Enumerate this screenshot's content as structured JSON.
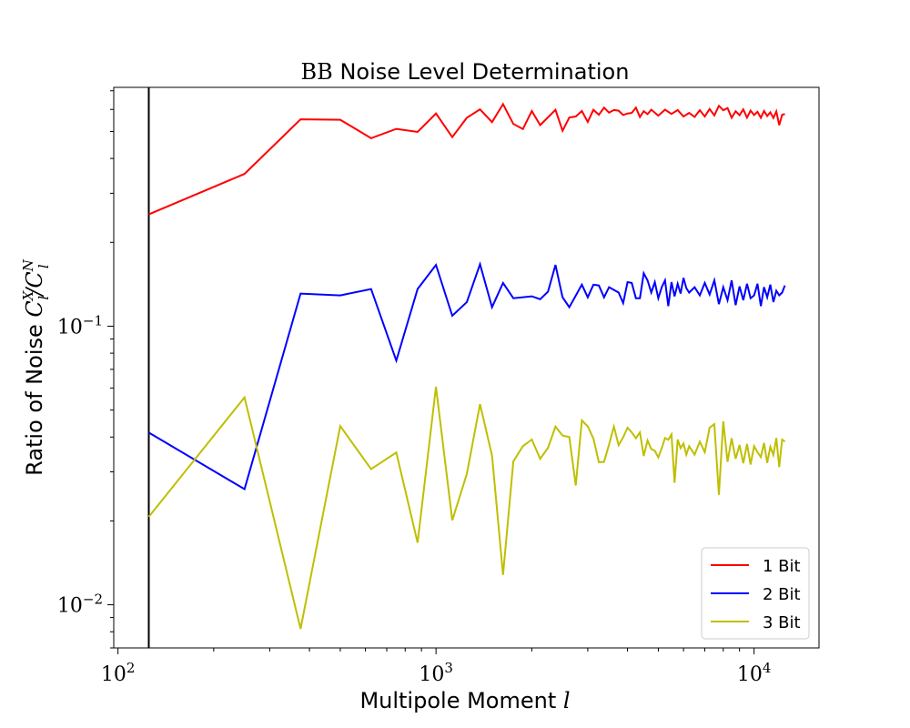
{
  "chart_data": {
    "type": "line",
    "title_prefix": "BB",
    "title_rest": " Noise Level Determination",
    "xlabel_text": "Multipole Moment ",
    "xlabel_var": "l",
    "ylabel_text": "Ratio of Noise ",
    "ylabel_math": "C",
    "ylabel_sup1": "X",
    "ylabel_sub1": "l",
    "ylabel_slash": "/C",
    "ylabel_sup2": "N",
    "ylabel_sub2": "l",
    "x_scale": "log",
    "y_scale": "log",
    "xlim": [
      97,
      16000
    ],
    "ylim": [
      0.007,
      0.72
    ],
    "x_ticks": [
      {
        "value": 100,
        "base": "10",
        "exp": "2"
      },
      {
        "value": 1000,
        "base": "10",
        "exp": "3"
      },
      {
        "value": 10000,
        "base": "10",
        "exp": "4"
      }
    ],
    "y_ticks": [
      {
        "value": 0.01,
        "base": "10",
        "exp": "−2"
      },
      {
        "value": 0.1,
        "base": "10",
        "exp": "−1"
      }
    ],
    "vline_x": 125,
    "grid": false,
    "legend_position": "lower-right",
    "series": [
      {
        "name": "1 Bit",
        "color": "#ff0000",
        "points": [
          [
            125,
            0.252
          ],
          [
            250,
            0.352
          ],
          [
            375,
            0.553
          ],
          [
            500,
            0.551
          ],
          [
            625,
            0.473
          ],
          [
            750,
            0.511
          ],
          [
            875,
            0.498
          ],
          [
            1000,
            0.58
          ],
          [
            1125,
            0.477
          ],
          [
            1250,
            0.56
          ],
          [
            1375,
            0.6
          ],
          [
            1500,
            0.54
          ],
          [
            1625,
            0.627
          ],
          [
            1750,
            0.532
          ],
          [
            1875,
            0.51
          ],
          [
            2000,
            0.592
          ],
          [
            2125,
            0.527
          ],
          [
            2375,
            0.598
          ],
          [
            2500,
            0.503
          ],
          [
            2625,
            0.561
          ],
          [
            2750,
            0.566
          ],
          [
            2875,
            0.592
          ],
          [
            3000,
            0.541
          ],
          [
            3125,
            0.598
          ],
          [
            3250,
            0.574
          ],
          [
            3375,
            0.609
          ],
          [
            3500,
            0.584
          ],
          [
            3625,
            0.597
          ],
          [
            3750,
            0.594
          ],
          [
            3875,
            0.573
          ],
          [
            4000,
            0.58
          ],
          [
            4125,
            0.583
          ],
          [
            4250,
            0.609
          ],
          [
            4375,
            0.564
          ],
          [
            4500,
            0.591
          ],
          [
            4625,
            0.577
          ],
          [
            4750,
            0.599
          ],
          [
            5000,
            0.57
          ],
          [
            5250,
            0.599
          ],
          [
            5500,
            0.578
          ],
          [
            5750,
            0.597
          ],
          [
            6000,
            0.566
          ],
          [
            6250,
            0.583
          ],
          [
            6500,
            0.564
          ],
          [
            6750,
            0.596
          ],
          [
            7000,
            0.566
          ],
          [
            7250,
            0.602
          ],
          [
            7500,
            0.571
          ],
          [
            7750,
            0.618
          ],
          [
            8000,
            0.596
          ],
          [
            8250,
            0.607
          ],
          [
            8500,
            0.56
          ],
          [
            8750,
            0.591
          ],
          [
            9000,
            0.572
          ],
          [
            9250,
            0.6
          ],
          [
            9500,
            0.561
          ],
          [
            9750,
            0.594
          ],
          [
            10000,
            0.573
          ],
          [
            10250,
            0.588
          ],
          [
            10500,
            0.56
          ],
          [
            10750,
            0.592
          ],
          [
            11000,
            0.568
          ],
          [
            11250,
            0.586
          ],
          [
            11500,
            0.559
          ],
          [
            11750,
            0.59
          ],
          [
            12000,
            0.527
          ],
          [
            12250,
            0.574
          ],
          [
            12500,
            0.577
          ]
        ]
      },
      {
        "name": "2 Bit",
        "color": "#0000ff",
        "points": [
          [
            125,
            0.0415
          ],
          [
            250,
            0.026
          ],
          [
            375,
            0.131
          ],
          [
            500,
            0.129
          ],
          [
            625,
            0.136
          ],
          [
            750,
            0.0752
          ],
          [
            875,
            0.136
          ],
          [
            1000,
            0.166
          ],
          [
            1125,
            0.109
          ],
          [
            1250,
            0.122
          ],
          [
            1375,
            0.167
          ],
          [
            1500,
            0.117
          ],
          [
            1625,
            0.143
          ],
          [
            1750,
            0.126
          ],
          [
            2000,
            0.128
          ],
          [
            2125,
            0.125
          ],
          [
            2250,
            0.133
          ],
          [
            2375,
            0.166
          ],
          [
            2500,
            0.127
          ],
          [
            2625,
            0.117
          ],
          [
            2875,
            0.141
          ],
          [
            3000,
            0.127
          ],
          [
            3125,
            0.141
          ],
          [
            3250,
            0.14
          ],
          [
            3375,
            0.127
          ],
          [
            3500,
            0.138
          ],
          [
            3750,
            0.132
          ],
          [
            3875,
            0.121
          ],
          [
            4000,
            0.144
          ],
          [
            4125,
            0.143
          ],
          [
            4250,
            0.126
          ],
          [
            4375,
            0.126
          ],
          [
            4500,
            0.155
          ],
          [
            4625,
            0.146
          ],
          [
            4750,
            0.132
          ],
          [
            4875,
            0.144
          ],
          [
            5000,
            0.126
          ],
          [
            5125,
            0.138
          ],
          [
            5250,
            0.146
          ],
          [
            5375,
            0.118
          ],
          [
            5500,
            0.144
          ],
          [
            5625,
            0.128
          ],
          [
            5750,
            0.142
          ],
          [
            5875,
            0.131
          ],
          [
            6000,
            0.149
          ],
          [
            6125,
            0.137
          ],
          [
            6250,
            0.132
          ],
          [
            6500,
            0.138
          ],
          [
            6750,
            0.129
          ],
          [
            7000,
            0.143
          ],
          [
            7250,
            0.13
          ],
          [
            7500,
            0.146
          ],
          [
            7750,
            0.12
          ],
          [
            8000,
            0.138
          ],
          [
            8250,
            0.124
          ],
          [
            8500,
            0.146
          ],
          [
            8750,
            0.119
          ],
          [
            9000,
            0.139
          ],
          [
            9250,
            0.124
          ],
          [
            9500,
            0.142
          ],
          [
            9750,
            0.126
          ],
          [
            10000,
            0.129
          ],
          [
            10250,
            0.142
          ],
          [
            10500,
            0.118
          ],
          [
            10750,
            0.138
          ],
          [
            11000,
            0.127
          ],
          [
            11250,
            0.141
          ],
          [
            11500,
            0.122
          ],
          [
            11750,
            0.134
          ],
          [
            12000,
            0.129
          ],
          [
            12250,
            0.132
          ],
          [
            12500,
            0.14
          ]
        ]
      },
      {
        "name": "3 Bit",
        "color": "#bfbf00",
        "points": [
          [
            125,
            0.0207
          ],
          [
            250,
            0.0555
          ],
          [
            375,
            0.0082
          ],
          [
            500,
            0.0438
          ],
          [
            625,
            0.0307
          ],
          [
            750,
            0.0352
          ],
          [
            875,
            0.0167
          ],
          [
            1000,
            0.0606
          ],
          [
            1125,
            0.0201
          ],
          [
            1250,
            0.0295
          ],
          [
            1375,
            0.0525
          ],
          [
            1500,
            0.0343
          ],
          [
            1625,
            0.0128
          ],
          [
            1750,
            0.0327
          ],
          [
            1875,
            0.0371
          ],
          [
            2000,
            0.0392
          ],
          [
            2125,
            0.0334
          ],
          [
            2250,
            0.0366
          ],
          [
            2375,
            0.0436
          ],
          [
            2500,
            0.0405
          ],
          [
            2625,
            0.04
          ],
          [
            2750,
            0.0268
          ],
          [
            2875,
            0.0459
          ],
          [
            3000,
            0.0437
          ],
          [
            3125,
            0.0395
          ],
          [
            3250,
            0.0325
          ],
          [
            3375,
            0.0326
          ],
          [
            3500,
            0.0376
          ],
          [
            3625,
            0.0436
          ],
          [
            3750,
            0.0374
          ],
          [
            3875,
            0.0399
          ],
          [
            4000,
            0.0432
          ],
          [
            4125,
            0.0416
          ],
          [
            4250,
            0.0396
          ],
          [
            4375,
            0.0416
          ],
          [
            4500,
            0.0342
          ],
          [
            4625,
            0.0389
          ],
          [
            4750,
            0.0362
          ],
          [
            4875,
            0.0357
          ],
          [
            5000,
            0.0338
          ],
          [
            5125,
            0.0365
          ],
          [
            5250,
            0.0397
          ],
          [
            5375,
            0.0391
          ],
          [
            5500,
            0.0409
          ],
          [
            5625,
            0.0274
          ],
          [
            5750,
            0.0392
          ],
          [
            5875,
            0.0365
          ],
          [
            6000,
            0.0379
          ],
          [
            6125,
            0.0346
          ],
          [
            6250,
            0.0371
          ],
          [
            6500,
            0.0346
          ],
          [
            6750,
            0.0385
          ],
          [
            7000,
            0.0353
          ],
          [
            7250,
            0.0432
          ],
          [
            7500,
            0.0445
          ],
          [
            7750,
            0.0248
          ],
          [
            8000,
            0.0456
          ],
          [
            8250,
            0.0326
          ],
          [
            8500,
            0.0396
          ],
          [
            8750,
            0.0334
          ],
          [
            9000,
            0.0375
          ],
          [
            9250,
            0.0322
          ],
          [
            9500,
            0.0378
          ],
          [
            9750,
            0.0319
          ],
          [
            10000,
            0.0371
          ],
          [
            10250,
            0.0353
          ],
          [
            10500,
            0.0339
          ],
          [
            10750,
            0.0381
          ],
          [
            11000,
            0.0323
          ],
          [
            11250,
            0.0369
          ],
          [
            11500,
            0.0345
          ],
          [
            11750,
            0.0397
          ],
          [
            12000,
            0.0312
          ],
          [
            12250,
            0.0392
          ],
          [
            12500,
            0.0385
          ]
        ]
      }
    ]
  }
}
